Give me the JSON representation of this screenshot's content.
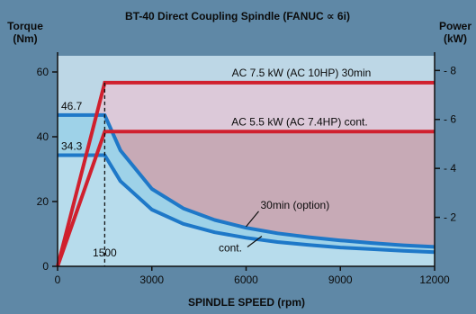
{
  "chart_data": {
    "type": "line",
    "title": "BT-40 Direct Coupling Spindle (FANUC ∝ 6i)",
    "xlabel": "SPINDLE SPEED (rpm)",
    "ylabel_left": "Torque\n(Nm)",
    "ylabel_right": "Power\n(kW)",
    "xlim": [
      0,
      12000
    ],
    "ylim_left": [
      0,
      65
    ],
    "ylim_right": [
      0,
      8.6
    ],
    "x_ticks": [
      0,
      3000,
      6000,
      9000,
      12000
    ],
    "y_ticks_left": [
      0,
      20,
      40,
      60
    ],
    "y_ticks_right": [
      2,
      4,
      6,
      8
    ],
    "base_speed": 1500,
    "base_speed_label": "1500",
    "series": [
      {
        "name": "AC 7.5 kW (AC 10HP) 30min",
        "axis": "right",
        "color": "#d0202e",
        "x": [
          0,
          1500,
          12000
        ],
        "y": [
          0,
          7.5,
          7.5
        ]
      },
      {
        "name": "AC 5.5 kW (AC 7.4HP) cont.",
        "axis": "right",
        "color": "#d0202e",
        "x": [
          0,
          1500,
          12000
        ],
        "y": [
          0,
          5.5,
          5.5
        ]
      },
      {
        "name": "30min (option)",
        "axis": "left",
        "color": "#1e78c8",
        "x": [
          0,
          1500,
          2000,
          3000,
          4000,
          5000,
          6000,
          7000,
          8000,
          9000,
          10000,
          11000,
          12000
        ],
        "y": [
          46.7,
          46.7,
          35.8,
          23.9,
          17.9,
          14.3,
          11.9,
          10.2,
          9.0,
          8.0,
          7.2,
          6.5,
          6.0
        ]
      },
      {
        "name": "cont.",
        "axis": "left",
        "color": "#1e78c8",
        "x": [
          0,
          1500,
          2000,
          3000,
          4000,
          5000,
          6000,
          7000,
          8000,
          9000,
          10000,
          11000,
          12000
        ],
        "y": [
          34.3,
          34.3,
          26.3,
          17.5,
          13.1,
          10.5,
          8.8,
          7.5,
          6.6,
          5.8,
          5.3,
          4.8,
          4.4
        ]
      }
    ],
    "data_labels": {
      "torque_30min": "46.7",
      "torque_cont": "34.3"
    },
    "colors": {
      "background": "#5f88a6",
      "plot_background": "#bdd7e6",
      "power_30min_fill": "#dcc9d9",
      "power_cont_fill": "#c7aab6",
      "torque_band_fill": "#9ed2e8",
      "torque_cont_fill": "#b7dcec"
    },
    "grid": false
  }
}
